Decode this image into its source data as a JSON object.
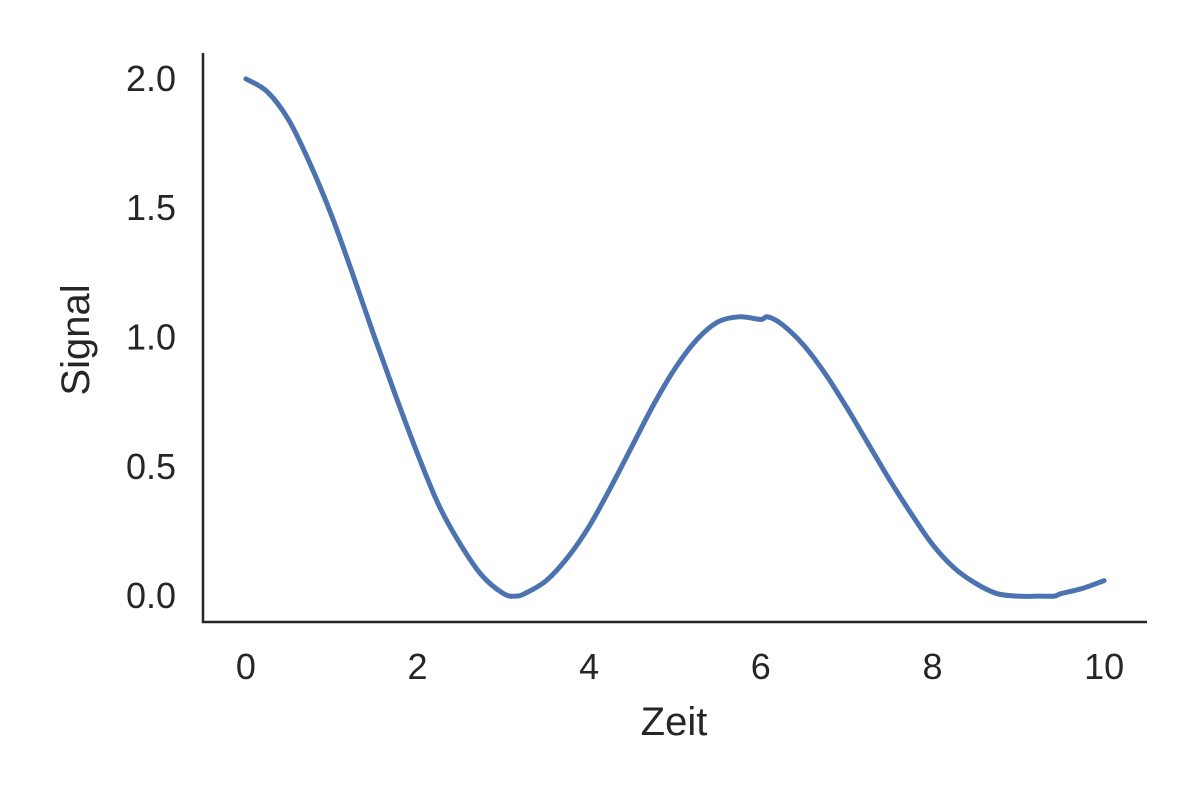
{
  "chart_data": {
    "type": "line",
    "title": "",
    "xlabel": "Zeit",
    "ylabel": "Signal",
    "xlim": [
      -0.5,
      10.5
    ],
    "ylim": [
      -0.1,
      2.1
    ],
    "xticks": [
      0,
      2,
      4,
      6,
      8,
      10
    ],
    "xtick_labels": [
      "0",
      "2",
      "4",
      "6",
      "8",
      "10"
    ],
    "yticks": [
      0.0,
      0.5,
      1.0,
      1.5,
      2.0
    ],
    "ytick_labels": [
      "0.0",
      "0.5",
      "1.0",
      "1.5",
      "2.0"
    ],
    "grid": false,
    "legend": "none",
    "series": [
      {
        "color": "#4c72b0",
        "x": [
          0.0,
          0.25,
          0.5,
          0.75,
          1.0,
          1.25,
          1.5,
          1.75,
          2.0,
          2.25,
          2.5,
          2.75,
          3.0,
          3.14,
          3.25,
          3.5,
          3.75,
          4.0,
          4.25,
          4.5,
          4.75,
          5.0,
          5.25,
          5.5,
          5.75,
          6.0,
          6.08,
          6.25,
          6.5,
          6.75,
          7.0,
          7.25,
          7.5,
          7.75,
          8.0,
          8.25,
          8.5,
          8.75,
          9.0,
          9.25,
          9.42,
          9.5,
          9.75,
          10.0
        ],
        "y": [
          2.0,
          1.95,
          1.84,
          1.67,
          1.47,
          1.24,
          1.0,
          0.77,
          0.55,
          0.35,
          0.2,
          0.08,
          0.01,
          0.0,
          0.01,
          0.06,
          0.15,
          0.27,
          0.42,
          0.58,
          0.74,
          0.88,
          0.99,
          1.06,
          1.08,
          1.07,
          1.08,
          1.05,
          0.97,
          0.86,
          0.73,
          0.59,
          0.45,
          0.32,
          0.2,
          0.11,
          0.05,
          0.01,
          0.0,
          0.0,
          0.0,
          0.01,
          0.03,
          0.06
        ]
      }
    ]
  }
}
